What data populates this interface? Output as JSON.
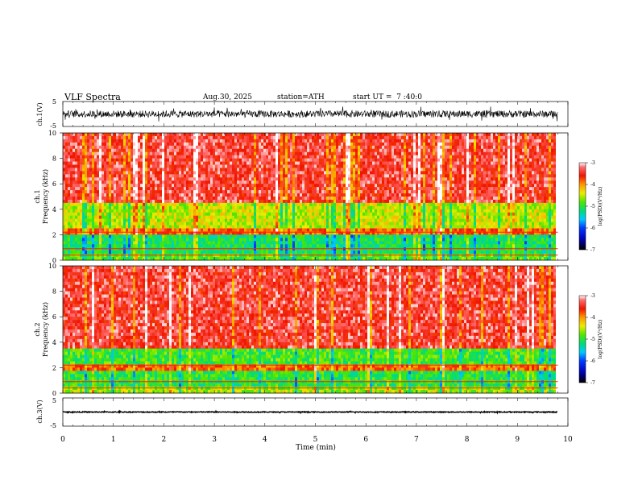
{
  "header": {
    "title": "VLF Spectra",
    "date": "Aug.30, 2025",
    "station": "station=ATH",
    "start": "start UT =  7 :40:0"
  },
  "chart_data": [
    {
      "type": "line",
      "name": "waveform-ch1",
      "ylabel": "ch.1(V)",
      "yticks": [
        "5",
        "-5"
      ],
      "ylim": [
        -5,
        5
      ],
      "xlim": [
        0,
        10
      ],
      "data_extent_min": 9.8,
      "baseline": 0,
      "amplitude": "noisy, approx ±1.5 V"
    },
    {
      "type": "heatmap",
      "name": "spectrogram-ch1",
      "ylabel": "ch.1\nFrequency (kHz)",
      "ylabel_top": "ch.1",
      "ylabel_bottom": "Frequency (kHz)",
      "yticks": [
        "0",
        "2",
        "4",
        "6",
        "8",
        "10"
      ],
      "ylim": [
        0,
        10
      ],
      "xlim": [
        0,
        10
      ],
      "data_extent_min": 9.8,
      "colorbar": {
        "label": "log(PSD)(V²/Hz)",
        "ticks": [
          "-3",
          "-4",
          "-5",
          "-6",
          "-7"
        ],
        "range": [
          -7,
          -3
        ]
      },
      "bands_khz": [
        {
          "from": 0,
          "to": 0.6,
          "level": -4.8
        },
        {
          "from": 0.6,
          "to": 2.0,
          "level": -5.1
        },
        {
          "from": 2.0,
          "to": 2.4,
          "level": -3.8
        },
        {
          "from": 2.4,
          "to": 4.5,
          "level": -4.5
        },
        {
          "from": 4.5,
          "to": 10,
          "level": -3.4
        }
      ]
    },
    {
      "type": "heatmap",
      "name": "spectrogram-ch2",
      "ylabel_top": "ch.2",
      "ylabel_bottom": "Frequency (kHz)",
      "yticks": [
        "0",
        "2",
        "4",
        "6",
        "8",
        "10"
      ],
      "ylim": [
        0,
        10
      ],
      "xlim": [
        0,
        10
      ],
      "data_extent_min": 9.8,
      "colorbar": {
        "label": "log(PSD)(V²/Hz)",
        "ticks": [
          "-3",
          "-4",
          "-5",
          "-6",
          "-7"
        ],
        "range": [
          -7,
          -3
        ]
      },
      "bands_khz": [
        {
          "from": 0,
          "to": 0.5,
          "level": -4.6
        },
        {
          "from": 0.5,
          "to": 1.8,
          "level": -5.0
        },
        {
          "from": 1.8,
          "to": 2.2,
          "level": -3.8
        },
        {
          "from": 2.2,
          "to": 3.4,
          "level": -4.9
        },
        {
          "from": 3.4,
          "to": 10,
          "level": -3.4
        }
      ]
    },
    {
      "type": "line",
      "name": "waveform-ch3",
      "ylabel": "ch.3(V)",
      "yticks": [
        "5",
        "-5"
      ],
      "ylim": [
        -5,
        5
      ],
      "xlim": [
        0,
        10
      ],
      "data_extent_min": 9.8,
      "baseline": 0,
      "amplitude": "flat, approx ±0.2 V"
    }
  ],
  "xaxis": {
    "label": "Time (min)",
    "ticks": [
      "0",
      "1",
      "2",
      "3",
      "4",
      "5",
      "6",
      "7",
      "8",
      "9",
      "10"
    ],
    "range": [
      0,
      10
    ]
  }
}
